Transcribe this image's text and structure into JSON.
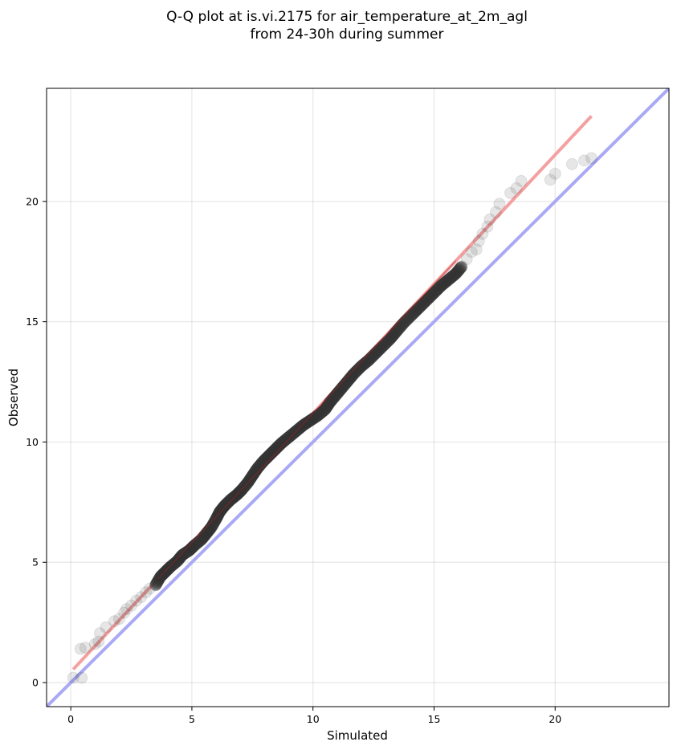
{
  "chart_data": {
    "type": "scatter",
    "title": [
      "Q-Q plot at is.vi.2175 for air_temperature_at_2m_agl",
      "from 24-30h during summer"
    ],
    "xlabel": "Simulated",
    "ylabel": "Observed",
    "xlim": [
      -1,
      24.7
    ],
    "ylim": [
      -1,
      24.7
    ],
    "xticks": [
      0,
      5,
      10,
      15,
      20
    ],
    "yticks": [
      0,
      5,
      10,
      15,
      20
    ],
    "grid": true,
    "colors": {
      "points": "#333333",
      "fit_line": "#f4a0a0",
      "identity_line": "#a9a9f5",
      "fit_center_line": "#b02020"
    },
    "series": [
      {
        "type": "quantiles",
        "points": [
          [
            0.1,
            0.2
          ],
          [
            0.45,
            0.2
          ],
          [
            0.4,
            1.4
          ],
          [
            0.6,
            1.45
          ],
          [
            1.0,
            1.6
          ],
          [
            1.15,
            1.7
          ],
          [
            1.2,
            2.05
          ],
          [
            1.45,
            2.3
          ],
          [
            1.8,
            2.55
          ],
          [
            2.0,
            2.65
          ],
          [
            2.2,
            2.9
          ],
          [
            2.3,
            3.05
          ],
          [
            2.5,
            3.2
          ],
          [
            2.7,
            3.4
          ],
          [
            2.9,
            3.55
          ],
          [
            3.1,
            3.75
          ],
          [
            3.25,
            3.9
          ],
          [
            3.5,
            4.05
          ],
          [
            3.7,
            4.4
          ],
          [
            3.9,
            4.6
          ],
          [
            4.1,
            4.8
          ],
          [
            4.4,
            5.05
          ],
          [
            4.6,
            5.3
          ],
          [
            4.9,
            5.5
          ],
          [
            5.1,
            5.7
          ],
          [
            5.4,
            5.95
          ],
          [
            5.6,
            6.2
          ],
          [
            5.8,
            6.45
          ],
          [
            6.0,
            6.8
          ],
          [
            6.15,
            7.1
          ],
          [
            6.35,
            7.35
          ],
          [
            6.6,
            7.6
          ],
          [
            6.85,
            7.8
          ],
          [
            7.05,
            8.0
          ],
          [
            7.3,
            8.3
          ],
          [
            7.5,
            8.6
          ],
          [
            7.7,
            8.9
          ],
          [
            7.95,
            9.2
          ],
          [
            8.2,
            9.45
          ],
          [
            8.45,
            9.7
          ],
          [
            8.7,
            9.95
          ],
          [
            9.0,
            10.2
          ],
          [
            9.3,
            10.45
          ],
          [
            9.6,
            10.7
          ],
          [
            9.9,
            10.9
          ],
          [
            10.2,
            11.1
          ],
          [
            10.5,
            11.35
          ],
          [
            10.7,
            11.65
          ],
          [
            10.95,
            11.95
          ],
          [
            11.2,
            12.25
          ],
          [
            11.45,
            12.55
          ],
          [
            11.7,
            12.85
          ],
          [
            12.0,
            13.15
          ],
          [
            12.3,
            13.4
          ],
          [
            12.6,
            13.7
          ],
          [
            12.9,
            14.0
          ],
          [
            13.2,
            14.3
          ],
          [
            13.45,
            14.6
          ],
          [
            13.75,
            14.95
          ],
          [
            14.1,
            15.3
          ],
          [
            14.4,
            15.6
          ],
          [
            14.7,
            15.9
          ],
          [
            15.0,
            16.2
          ],
          [
            15.3,
            16.5
          ],
          [
            15.6,
            16.75
          ],
          [
            15.9,
            17.0
          ],
          [
            16.15,
            17.3
          ],
          [
            16.35,
            17.6
          ],
          [
            16.55,
            17.9
          ],
          [
            16.75,
            18.0
          ],
          [
            16.85,
            18.35
          ],
          [
            17.0,
            18.65
          ],
          [
            17.2,
            18.95
          ],
          [
            17.3,
            19.25
          ],
          [
            17.55,
            19.55
          ],
          [
            17.7,
            19.9
          ],
          [
            18.15,
            20.35
          ],
          [
            18.4,
            20.55
          ],
          [
            18.6,
            20.85
          ],
          [
            19.8,
            20.9
          ],
          [
            20.0,
            21.15
          ],
          [
            20.7,
            21.55
          ],
          [
            21.2,
            21.7
          ],
          [
            21.5,
            21.8
          ]
        ]
      },
      {
        "type": "fit_line",
        "x": [
          0.1,
          21.5
        ],
        "y": [
          0.55,
          23.55
        ]
      },
      {
        "type": "identity_line",
        "x": [
          -1,
          24.7
        ],
        "y": [
          -1,
          24.7
        ]
      }
    ]
  }
}
